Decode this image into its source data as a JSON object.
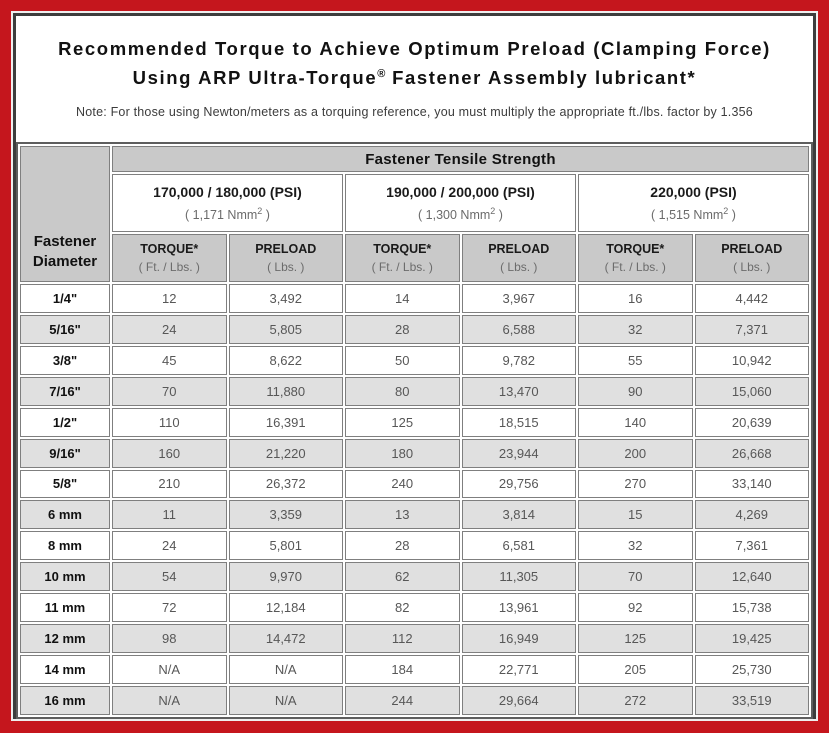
{
  "title": {
    "line1": "Recommended Torque to Achieve Optimum Preload (Clamping Force)",
    "line2_pre": "Using ARP Ultra-Torque",
    "line2_sup": "®",
    "line2_post": " Fastener Assembly lubricant*"
  },
  "note": "Note: For those using Newton/meters as a torquing reference, you must multiply the appropriate ft./lbs. factor by 1.356",
  "table": {
    "tensile_header": "Fastener Tensile Strength",
    "diameter_header": "Fastener Diameter",
    "groups": [
      {
        "psi": "170,000 / 180,000 (PSI)",
        "nmm_pre": "( 1,171 Nmm",
        "nmm_sup": "2",
        "nmm_post": " )"
      },
      {
        "psi": "190,000 / 200,000 (PSI)",
        "nmm_pre": "( 1,300 Nmm",
        "nmm_sup": "2",
        "nmm_post": " )"
      },
      {
        "psi": "220,000 (PSI)",
        "nmm_pre": "( 1,515 Nmm",
        "nmm_sup": "2",
        "nmm_post": " )"
      }
    ],
    "col_headers": {
      "torque": "TORQUE*",
      "torque_unit": "( Ft. / Lbs. )",
      "preload": "PRELOAD",
      "preload_unit": "( Lbs. )"
    },
    "rows": [
      {
        "d": "1/4\"",
        "v": [
          "12",
          "3,492",
          "14",
          "3,967",
          "16",
          "4,442"
        ]
      },
      {
        "d": "5/16\"",
        "v": [
          "24",
          "5,805",
          "28",
          "6,588",
          "32",
          "7,371"
        ]
      },
      {
        "d": "3/8\"",
        "v": [
          "45",
          "8,622",
          "50",
          "9,782",
          "55",
          "10,942"
        ]
      },
      {
        "d": "7/16\"",
        "v": [
          "70",
          "11,880",
          "80",
          "13,470",
          "90",
          "15,060"
        ]
      },
      {
        "d": "1/2\"",
        "v": [
          "110",
          "16,391",
          "125",
          "18,515",
          "140",
          "20,639"
        ]
      },
      {
        "d": "9/16\"",
        "v": [
          "160",
          "21,220",
          "180",
          "23,944",
          "200",
          "26,668"
        ]
      },
      {
        "d": "5/8\"",
        "v": [
          "210",
          "26,372",
          "240",
          "29,756",
          "270",
          "33,140"
        ]
      },
      {
        "d": "6 mm",
        "v": [
          "11",
          "3,359",
          "13",
          "3,814",
          "15",
          "4,269"
        ]
      },
      {
        "d": "8 mm",
        "v": [
          "24",
          "5,801",
          "28",
          "6,581",
          "32",
          "7,361"
        ]
      },
      {
        "d": "10 mm",
        "v": [
          "54",
          "9,970",
          "62",
          "11,305",
          "70",
          "12,640"
        ]
      },
      {
        "d": "11 mm",
        "v": [
          "72",
          "12,184",
          "82",
          "13,961",
          "92",
          "15,738"
        ]
      },
      {
        "d": "12 mm",
        "v": [
          "98",
          "14,472",
          "112",
          "16,949",
          "125",
          "19,425"
        ]
      },
      {
        "d": "14 mm",
        "v": [
          "N/A",
          "N/A",
          "184",
          "22,771",
          "205",
          "25,730"
        ]
      },
      {
        "d": "16 mm",
        "v": [
          "N/A",
          "N/A",
          "244",
          "29,664",
          "272",
          "33,519"
        ]
      }
    ]
  },
  "colors": {
    "frame_red": "#c5161d",
    "inner_border": "#3d3d3d",
    "header_gray": "#c9c9c9",
    "row_gray": "#e0e0e0",
    "cell_border": "#7f7f7f",
    "value_text": "#575757"
  }
}
